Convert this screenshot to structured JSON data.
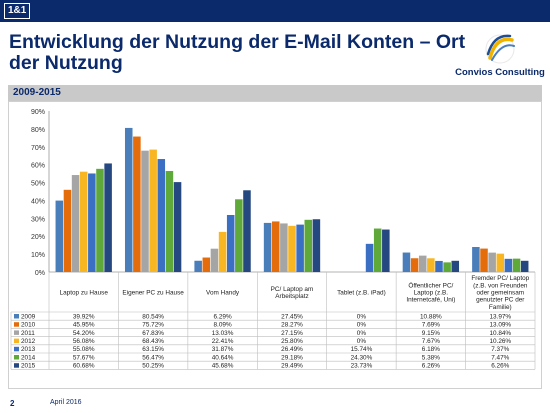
{
  "header": {
    "logo_text": "1&1"
  },
  "title": "Entwicklung der Nutzung der E-Mail Konten – Ort der Nutzung",
  "brand": {
    "name": "Convios Consulting"
  },
  "section": {
    "label": "2009-2015"
  },
  "footer": {
    "page_number": "2",
    "date": "April 2016"
  },
  "chart_data": {
    "type": "bar",
    "ylim": [
      0,
      90
    ],
    "yticks": [
      "0%",
      "10%",
      "20%",
      "30%",
      "40%",
      "50%",
      "60%",
      "70%",
      "80%",
      "90%"
    ],
    "grid": false,
    "categories": [
      "Laptop zu Hause",
      "Eigener PC zu Hause",
      "Vom Handy",
      "PC/ Laptop am Arbeitsplatz",
      "Tablet (z.B. iPad)",
      "Öffentlicher PC/ Laptop (z.B. Internetcafé, Uni)",
      "Fremder PC/ Laptop (z.B. von Freunden oder gemeinsam genutzter PC der Familie)"
    ],
    "series": [
      {
        "name": "2009",
        "color": "#4a7ebb",
        "values": [
          39.92,
          80.54,
          6.29,
          27.45,
          0,
          10.88,
          13.97
        ],
        "labels": [
          "39.92%",
          "80.54%",
          "6.29%",
          "27.45%",
          "0%",
          "10.88%",
          "13.97%"
        ]
      },
      {
        "name": "2010",
        "color": "#e46c0a",
        "values": [
          45.95,
          75.72,
          8.09,
          28.27,
          0,
          7.69,
          13.09
        ],
        "labels": [
          "45.95%",
          "75.72%",
          "8.09%",
          "28.27%",
          "0%",
          "7.69%",
          "13.09%"
        ]
      },
      {
        "name": "2011",
        "color": "#a5a5a5",
        "values": [
          54.2,
          67.83,
          13.03,
          27.15,
          0,
          9.15,
          10.84
        ],
        "labels": [
          "54.20%",
          "67.83%",
          "13.03%",
          "27.15%",
          "0%",
          "9.15%",
          "10.84%"
        ]
      },
      {
        "name": "2012",
        "color": "#f8b623",
        "values": [
          56.08,
          68.43,
          22.41,
          25.8,
          0,
          7.67,
          10.26
        ],
        "labels": [
          "56.08%",
          "68.43%",
          "22.41%",
          "25.80%",
          "0%",
          "7.67%",
          "10.26%"
        ]
      },
      {
        "name": "2013",
        "color": "#3a6fc4",
        "values": [
          55.08,
          63.15,
          31.87,
          26.49,
          15.74,
          6.18,
          7.37
        ],
        "labels": [
          "55.08%",
          "63.15%",
          "31.87%",
          "26.49%",
          "15.74%",
          "6.18%",
          "7.37%"
        ]
      },
      {
        "name": "2014",
        "color": "#5fa83a",
        "values": [
          57.67,
          56.47,
          40.64,
          29.18,
          24.3,
          5.38,
          7.47
        ],
        "labels": [
          "57.67%",
          "56.47%",
          "40.64%",
          "29.18%",
          "24.30%",
          "5.38%",
          "7.47%"
        ]
      },
      {
        "name": "2015",
        "color": "#24487f",
        "values": [
          60.68,
          50.25,
          45.68,
          29.49,
          23.73,
          6.26,
          6.26
        ],
        "labels": [
          "60.68%",
          "50.25%",
          "45.68%",
          "29.49%",
          "23.73%",
          "6.26%",
          "6.26%"
        ]
      }
    ]
  }
}
